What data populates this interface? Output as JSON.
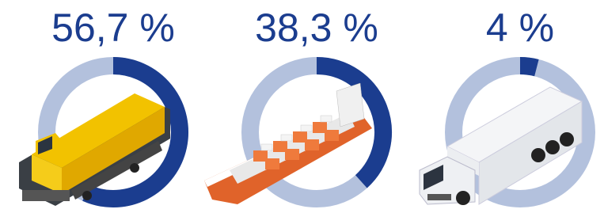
{
  "chart_data": [
    {
      "type": "donut",
      "values": [
        56.7
      ],
      "value_labels": [
        "56,7 %"
      ],
      "color": "#1b3d8f",
      "track_color": "#b3c1dd"
    },
    {
      "type": "donut",
      "values": [
        38.3
      ],
      "value_labels": [
        "38,3 %"
      ],
      "color": "#1b3d8f",
      "track_color": "#b3c1dd"
    },
    {
      "type": "donut",
      "values": [
        4
      ],
      "value_labels": [
        "4 %"
      ],
      "color": "#1b3d8f",
      "track_color": "#b3c1dd"
    }
  ]
}
